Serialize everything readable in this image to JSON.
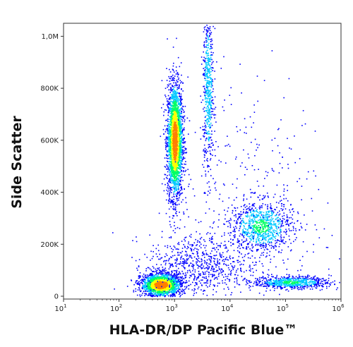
{
  "chart_data": {
    "type": "scatter",
    "title": "",
    "xlabel": "HLA-DR/DP Pacific Blue™",
    "ylabel": "Side Scatter",
    "x_scale": "log",
    "xlim": [
      10,
      1000000
    ],
    "ylim": [
      0,
      1050000
    ],
    "x_ticks": [
      {
        "value": 10,
        "base": "10",
        "exp": "1"
      },
      {
        "value": 100,
        "base": "10",
        "exp": "2"
      },
      {
        "value": 1000,
        "base": "10",
        "exp": "3"
      },
      {
        "value": 10000,
        "base": "10",
        "exp": "4"
      },
      {
        "value": 100000,
        "base": "10",
        "exp": "5"
      },
      {
        "value": 1000000,
        "base": "10",
        "exp": "6"
      }
    ],
    "y_ticks": [
      {
        "value": 0,
        "label": "0"
      },
      {
        "value": 200000,
        "label": "200K"
      },
      {
        "value": 400000,
        "label": "400K"
      },
      {
        "value": 600000,
        "label": "600K"
      },
      {
        "value": 800000,
        "label": "800K"
      },
      {
        "value": 1000000,
        "label": "1,0M"
      }
    ],
    "colormap": [
      "#0000ff",
      "#00c8ff",
      "#00ff64",
      "#ffff00",
      "#ff7f00",
      "#ff0000"
    ],
    "clusters": [
      {
        "x_log10_center": 3.0,
        "x_log10_sd": 0.07,
        "y_center": 600000,
        "y_sd": 110000,
        "count": 2600,
        "peak_density": 1.0
      },
      {
        "x_log10_center": 3.6,
        "x_log10_sd": 0.05,
        "y_center": 800000,
        "y_sd": 170000,
        "count": 600,
        "peak_density": 0.4
      },
      {
        "x_log10_center": 2.75,
        "x_log10_sd": 0.18,
        "y_center": 45000,
        "y_sd": 22000,
        "count": 1800,
        "peak_density": 1.0
      },
      {
        "x_log10_center": 4.55,
        "x_log10_sd": 0.28,
        "y_center": 270000,
        "y_sd": 50000,
        "count": 900,
        "peak_density": 0.45
      },
      {
        "x_log10_center": 5.1,
        "x_log10_sd": 0.35,
        "y_center": 55000,
        "y_sd": 12000,
        "count": 700,
        "peak_density": 0.45
      },
      {
        "x_log10_center": 3.4,
        "x_log10_sd": 0.45,
        "y_center": 120000,
        "y_sd": 60000,
        "count": 700,
        "peak_density": 0.2
      },
      {
        "x_log10_center": 4.3,
        "x_log10_sd": 0.7,
        "y_center": 350000,
        "y_sd": 250000,
        "count": 350,
        "peak_density": 0.1
      }
    ]
  }
}
